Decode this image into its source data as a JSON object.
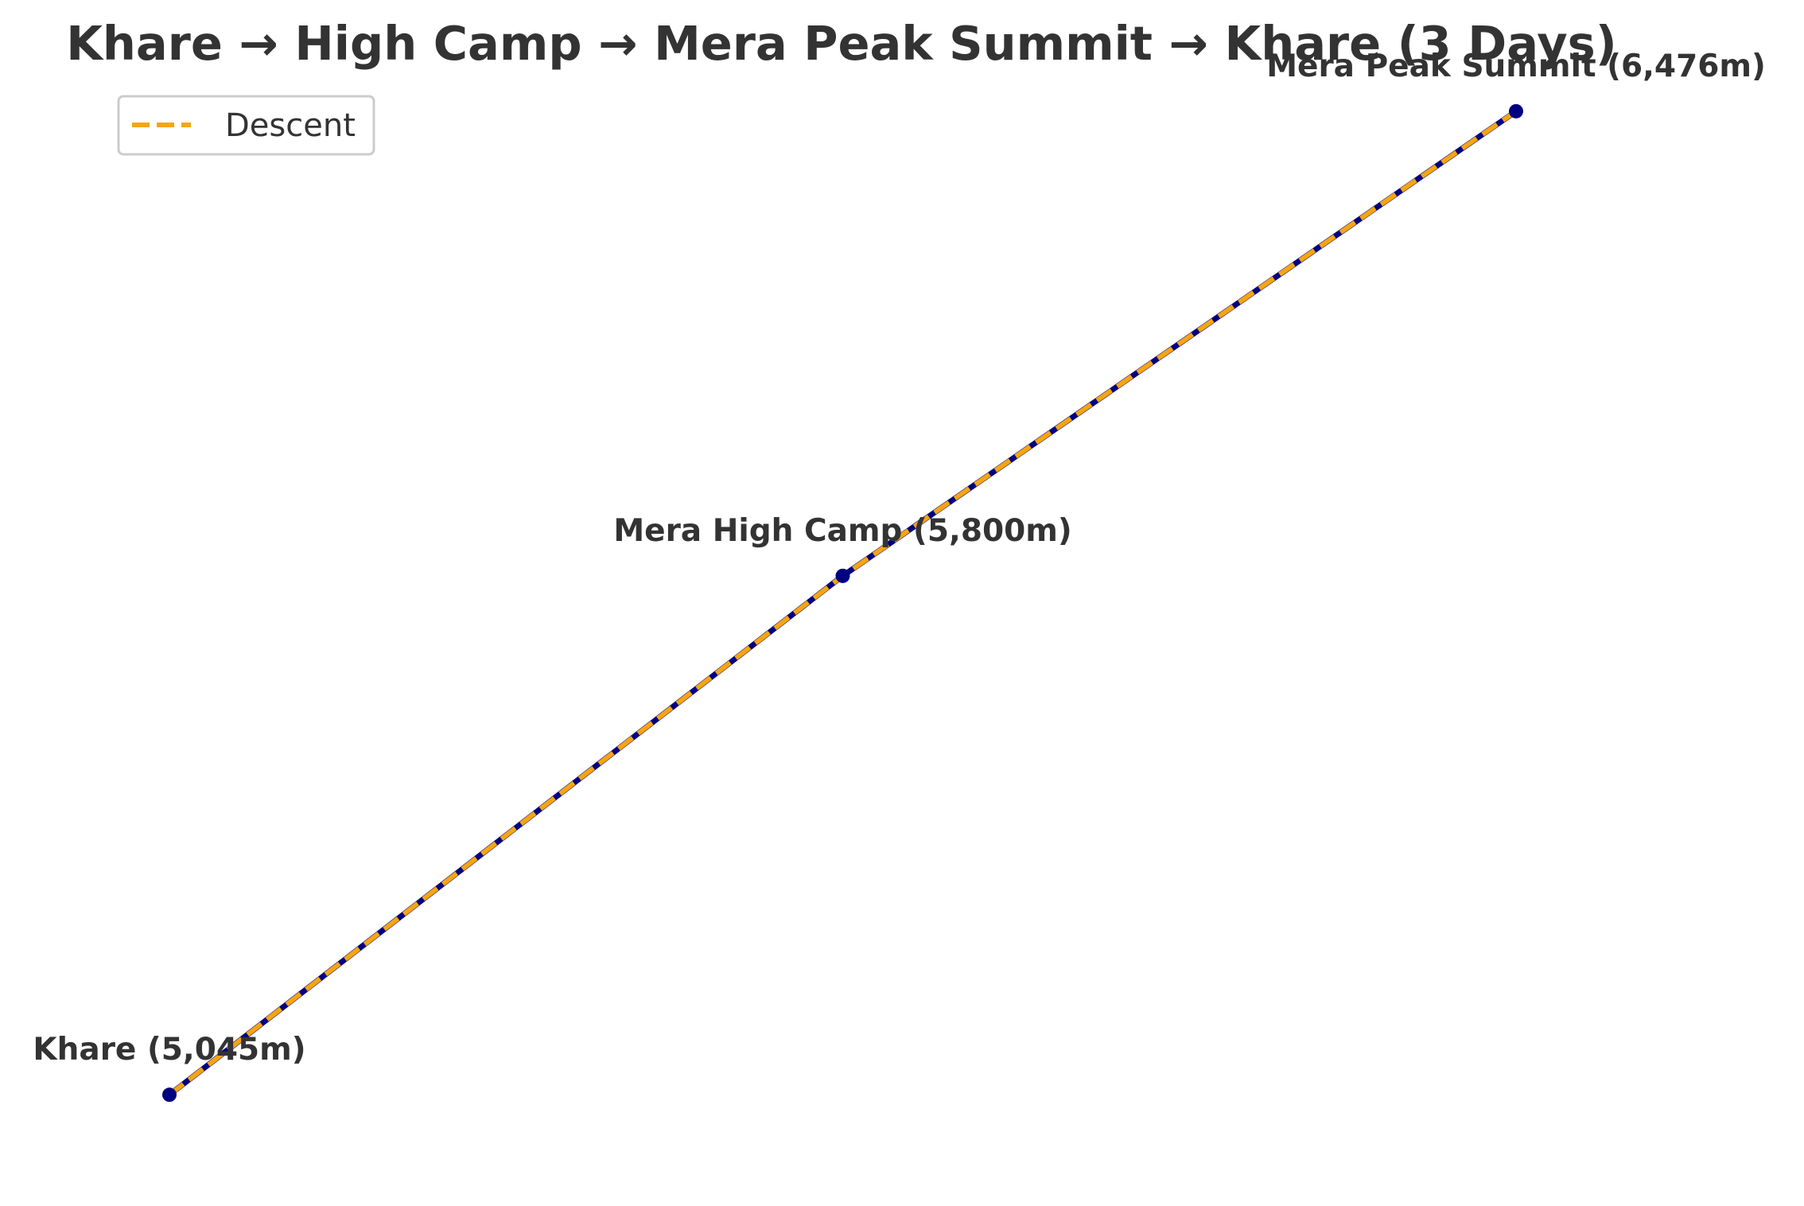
{
  "chart_data": {
    "type": "line",
    "title": "Khare → High Camp → Mera Peak Summit → Khare (3 Days)",
    "xlabel": "",
    "ylabel": "",
    "grid": false,
    "axes_visible": false,
    "legend_placement": "top-left",
    "x": [
      0,
      1,
      2
    ],
    "ylim": [
      4985,
      6536
    ],
    "points": [
      {
        "name": "Khare",
        "label": "Khare (5,045m)",
        "elevation_m": 5045
      },
      {
        "name": "Mera High Camp",
        "label": "Mera High Camp (5,800m)",
        "elevation_m": 5800
      },
      {
        "name": "Mera Peak Summit",
        "label": "Mera Peak Summit (6,476m)",
        "elevation_m": 6476
      }
    ],
    "series": [
      {
        "values": [
          5045,
          5800,
          6476
        ],
        "color": "#000080",
        "style": "solid-with-markers"
      },
      {
        "name": "Descent",
        "values": [
          5045,
          5800,
          6476
        ],
        "color": "#f5a511",
        "style": "dashed"
      }
    ],
    "legend": [
      "Descent"
    ]
  }
}
